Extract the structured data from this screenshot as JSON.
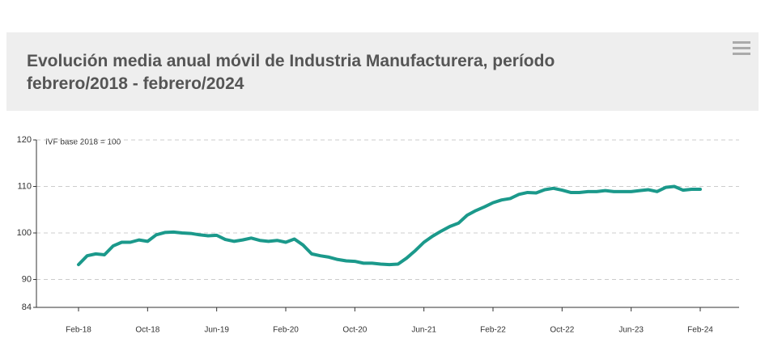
{
  "chart_data": {
    "type": "line",
    "title": "Evolución media anual móvil de Industria Manufacturera, período febrero/2018 - febrero/2024",
    "annotation": "IVF base 2018 = 100",
    "categories": [
      "Feb-18",
      null,
      null,
      null,
      null,
      null,
      null,
      null,
      "Oct-18",
      null,
      null,
      null,
      null,
      null,
      null,
      null,
      "Jun-19",
      null,
      null,
      null,
      null,
      null,
      null,
      null,
      "Feb-20",
      null,
      null,
      null,
      null,
      null,
      null,
      null,
      "Oct-20",
      null,
      null,
      null,
      null,
      null,
      null,
      null,
      "Jun-21",
      null,
      null,
      null,
      null,
      null,
      null,
      null,
      "Feb-22",
      null,
      null,
      null,
      null,
      null,
      null,
      null,
      "Oct-22",
      null,
      null,
      null,
      null,
      null,
      null,
      null,
      "Jun-23",
      null,
      null,
      null,
      null,
      null,
      null,
      null,
      "Feb-24"
    ],
    "series": [
      {
        "color": "#1b998b",
        "values": [
          93.2,
          95.1,
          95.5,
          95.3,
          97.2,
          98.0,
          98.0,
          98.5,
          98.2,
          99.6,
          100.1,
          100.2,
          100.0,
          99.9,
          99.6,
          99.4,
          99.5,
          98.6,
          98.2,
          98.5,
          98.9,
          98.4,
          98.2,
          98.4,
          98.0,
          98.7,
          97.4,
          95.5,
          95.1,
          94.8,
          94.3,
          94.0,
          93.9,
          93.5,
          93.5,
          93.3,
          93.2,
          93.3,
          94.6,
          96.2,
          98.0,
          99.3,
          100.4,
          101.4,
          102.1,
          103.8,
          104.8,
          105.6,
          106.5,
          107.1,
          107.4,
          108.3,
          108.7,
          108.6,
          109.3,
          109.6,
          109.2,
          108.7,
          108.7,
          108.9,
          108.9,
          109.1,
          108.9,
          108.9,
          108.9,
          109.1,
          109.3,
          108.9,
          109.8,
          110.0,
          109.2,
          109.4,
          109.4
        ]
      }
    ],
    "ylim": [
      84,
      120
    ],
    "yticks": [
      84,
      90,
      100,
      110,
      120
    ],
    "grid": true
  }
}
